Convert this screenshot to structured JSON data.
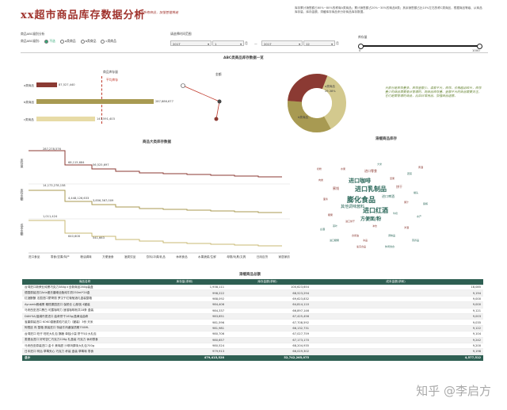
{
  "header": {
    "title": "xx超市商品库存数据分析",
    "subtitle": "——全国所有商品，加强管理用途",
    "intro": "库存累计销售额占60%~80%的称商A类商品；累计销售额占20%~30%的商品B类；其余销售额占比10%左右的称C类商品，根据商品等级、从商品库存量、库存金额、滞缓库存商品来分析商品库存数据。"
  },
  "filters": {
    "abc_label": "商品ABC级别分析",
    "abc_sub": "商品ABC级别:",
    "radios": [
      {
        "label": "不选",
        "selected": true
      },
      {
        "label": "a类商品",
        "selected": false
      },
      {
        "label": "b类商品",
        "selected": false
      },
      {
        "label": "c类商品",
        "selected": false
      }
    ],
    "date_label": "请选择时间范围",
    "year_start": "2017",
    "month_start": "1",
    "year_end": "2017",
    "month_end": "12",
    "year_unit": "年",
    "month_unit": "月",
    "sep": "—",
    "slider_label": "库存量",
    "slider_min": "0",
    "slider_max": "1000"
  },
  "abc": {
    "title": "ABC类商品库存数据一览",
    "col_stock": "商品库存量",
    "col_amount": "金额",
    "avg_label": "平均库存",
    "rows": [
      {
        "label": "a类商品",
        "value": "87,527,440",
        "frac": 0.3,
        "color": "#8b3a33"
      },
      {
        "label": "b类商品",
        "value": "287,886,677",
        "frac": 1.0,
        "color": "#a89a52"
      },
      {
        "label": "c类商品",
        "value": "143,591,403",
        "frac": 0.5,
        "color": "#e7dba6"
      }
    ],
    "pie": [
      {
        "label": "a类商品",
        "pct": "29.38%",
        "color": "#8b3a33"
      },
      {
        "label": "b类商品",
        "pct": "",
        "color": "#d3c98e"
      },
      {
        "label": "c类商品",
        "pct": "",
        "color": "#a89a52"
      }
    ]
  },
  "note": "大部分是库存量多、库存金额少、误差不大，库存，价格超出较大，库存量少的商品需要重点管理的，而商品库存量、金额不大的商品需要关注，它们是需管理的商品，比如日常用品，加强商品运营。",
  "trend": {
    "title": "商品大类库存数据",
    "y_labels": [
      "库存量",
      "库存金额",
      "成本金额"
    ],
    "categories": [
      "进口食品",
      "零食/坚果/特产",
      "粮油调味",
      "方便速食",
      "酒类饮品",
      "饮料/冲调/乳品",
      "休闲食品",
      "水果蔬菜/生鲜",
      "母婴/玩具/文具",
      "日用百货",
      "家居家纺"
    ],
    "labels": [
      [
        "287,278,576",
        "68,115,684",
        "56,525,697"
      ],
      [
        "14,173,278,158",
        "4,448,126,633",
        "3,856,367,009"
      ],
      [
        "1,011,424",
        "640,608",
        "541,663"
      ]
    ]
  },
  "wordcloud": {
    "title": "滞缓商品库存",
    "words": [
      {
        "t": "膨化食品",
        "s": 9,
        "c": "#2e6a5c"
      },
      {
        "t": "进口乳制品",
        "s": 8,
        "c": "#2e6a5c"
      },
      {
        "t": "进口红酒",
        "s": 8,
        "c": "#2e6a5c"
      },
      {
        "t": "进口咖啡",
        "s": 7,
        "c": "#2e6a5c"
      },
      {
        "t": "方便面/粉",
        "s": 6,
        "c": "#2e6a5c"
      },
      {
        "t": "其他调味酱料",
        "s": 5,
        "c": "#2e6a5c"
      },
      {
        "t": "进口零食",
        "s": 4,
        "c": "#8b3a33"
      },
      {
        "t": "进口啤酒",
        "s": 4,
        "c": "#2e6a5c"
      },
      {
        "t": "蜜饯",
        "s": 4,
        "c": "#8b3a33"
      },
      {
        "t": "饼干",
        "s": 4,
        "c": "#8b3a33"
      },
      {
        "t": "糖果",
        "s": 3,
        "c": "#8b3a33"
      },
      {
        "t": "坚果",
        "s": 3,
        "c": "#8b3a33"
      },
      {
        "t": "果汁",
        "s": 3,
        "c": "#8b3a33"
      },
      {
        "t": "茶叶",
        "s": 3,
        "c": "#2e6a5c"
      },
      {
        "t": "冲饮",
        "s": 3,
        "c": "#8b3a33"
      },
      {
        "t": "牛奶",
        "s": 3,
        "c": "#2e6a5c"
      },
      {
        "t": "食用油",
        "s": 3,
        "c": "#8b3a33"
      },
      {
        "t": "大米",
        "s": 3,
        "c": "#2e6a5c"
      },
      {
        "t": "面条",
        "s": 3,
        "c": "#8b3a33"
      },
      {
        "t": "罐头",
        "s": 3,
        "c": "#2e6a5c"
      },
      {
        "t": "水果",
        "s": 3,
        "c": "#8b3a33"
      },
      {
        "t": "蔬菜",
        "s": 3,
        "c": "#2e6a5c"
      },
      {
        "t": "肉类",
        "s": 3,
        "c": "#8b3a33"
      },
      {
        "t": "水产",
        "s": 3,
        "c": "#2e6a5c"
      },
      {
        "t": "冰品",
        "s": 3,
        "c": "#8b3a33"
      },
      {
        "t": "调味品",
        "s": 3,
        "c": "#2e6a5c"
      },
      {
        "t": "进口饼干",
        "s": 3,
        "c": "#8b3a33"
      },
      {
        "t": "进口糖果",
        "s": 3,
        "c": "#2e6a5c"
      },
      {
        "t": "洋酒",
        "s": 3,
        "c": "#8b3a33"
      },
      {
        "t": "白酒",
        "s": 3,
        "c": "#2e6a5c"
      },
      {
        "t": "黄酒",
        "s": 3,
        "c": "#8b3a33"
      },
      {
        "t": "休闲零食",
        "s": 3,
        "c": "#2e6a5c"
      },
      {
        "t": "速冻食品",
        "s": 3,
        "c": "#8b3a33"
      },
      {
        "t": "营养品",
        "s": 3,
        "c": "#2e6a5c"
      },
      {
        "t": "奶粉",
        "s": 3,
        "c": "#8b3a33"
      },
      {
        "t": "尿裤",
        "s": 3,
        "c": "#2e6a5c"
      }
    ]
  },
  "table": {
    "title": "滞缓商品总额",
    "headers": [
      "商品名称",
      "库存量(求和)",
      "库存金额(求和)",
      "成本金额(求和)"
    ],
    "rows": [
      [
        "台湾进口新荣业纯黑巧克力380g＊全新商品260g装盒",
        "1,938,111",
        "100,623,654",
        "18,085"
      ],
      [
        "德国原装进口Arla爱氏晨曦全脂纯牛奶250ml*24盒",
        "998,222",
        "68,523,294",
        "9,194"
      ],
      [
        "红酒酿酿 法国进口蒙哥丽 罗汉干红葡萄酒礼盒装整箱",
        "988,092",
        "69,623,832",
        "9,000"
      ],
      [
        "Aynamb雅格黑 橄榄果园进口 保税仓 山核桃 4罐装",
        "984,406",
        "64,814,110",
        "9,000"
      ],
      [
        "马来西亚进口黑白 可露咖啡力 速溶咖啡粉共18条 盒装",
        "984,337",
        "66,897,146",
        "9,121"
      ],
      [
        "DAN'SA/蓝绢丹麦进口 曲奇饼干163g/盒黄油曲奇",
        "983,651",
        "67,425,456",
        "9,003"
      ],
      [
        "雀巢原装进口 KOKO香脆麦粒巧克力（罐装）3份 天米",
        "981,596",
        "67,708,592",
        "9,035"
      ],
      [
        "阿根廷 肉 整箱 原装进口 特级牛肉酱保质期750ML",
        "981,981",
        "66,132,731",
        "9,122"
      ],
      [
        "台湾进口 旺仔 旺旺大礼包 酥脆 单独小袋 饼干5片大礼包",
        "980,706",
        "67,027,759",
        "9,104"
      ],
      [
        "麦德龙进口 好时杏仁巧克力226g 礼盒装 巧克力 休闲零食",
        "980,657",
        "67,173,170",
        "9,242"
      ],
      [
        "马来西亚原装进口 金卡 美味甜 沙琪玛原味大礼包700g",
        "980,524",
        "68,204,935",
        "9,200"
      ],
      [
        "日本进口 明治 草莓夹心 巧克力 杯装 盒装 草莓味 零食",
        "979,913",
        "66,029,302",
        "9,198"
      ]
    ],
    "total": [
      "总计",
      "479,415,528",
      "52,742,265,075",
      "4,577,512"
    ]
  },
  "watermark": "知乎 @李启方"
}
